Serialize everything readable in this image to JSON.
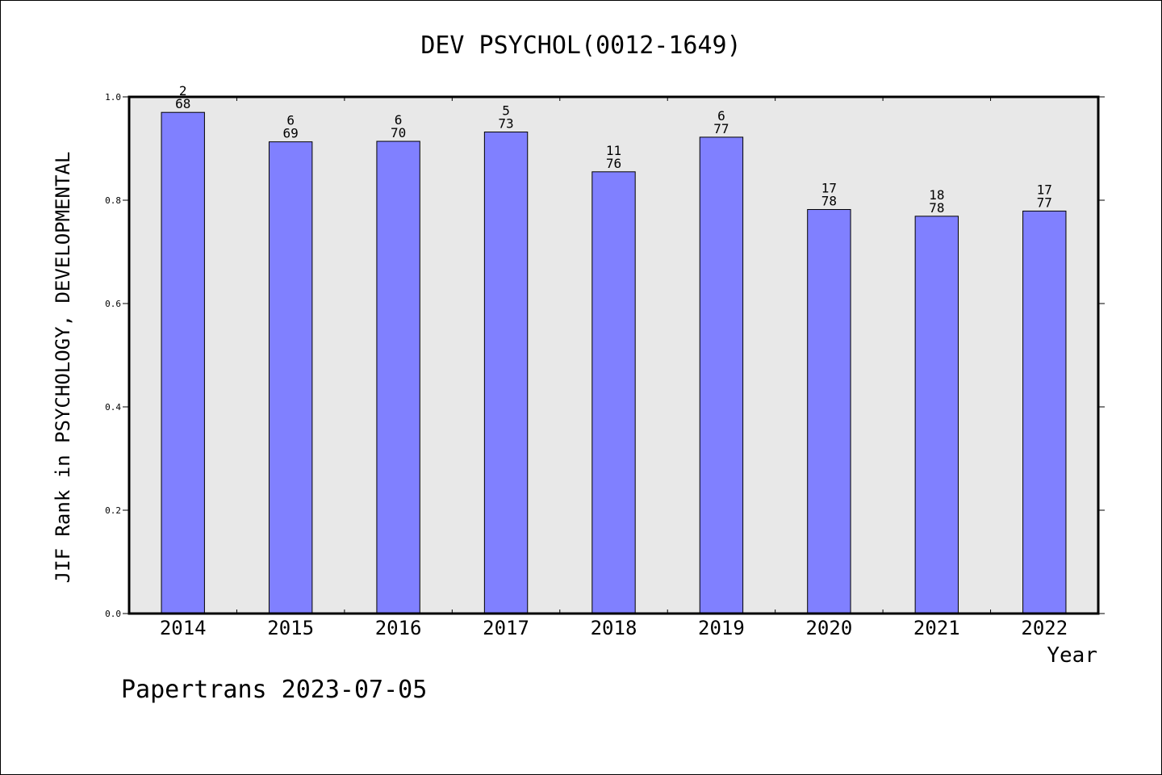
{
  "chart_data": {
    "type": "bar",
    "title": "DEV PSYCHOL(0012-1649)",
    "xlabel": "Year",
    "ylabel": "JIF Rank in PSYCHOLOGY, DEVELOPMENTAL",
    "footer": "Papertrans 2023-07-05",
    "categories": [
      "2014",
      "2015",
      "2016",
      "2017",
      "2018",
      "2019",
      "2020",
      "2021",
      "2022"
    ],
    "values": [
      0.97,
      0.913,
      0.914,
      0.932,
      0.855,
      0.922,
      0.782,
      0.769,
      0.779
    ],
    "rank_labels": [
      {
        "rank": "2",
        "total": "68"
      },
      {
        "rank": "6",
        "total": "69"
      },
      {
        "rank": "6",
        "total": "70"
      },
      {
        "rank": "5",
        "total": "73"
      },
      {
        "rank": "11",
        "total": "76"
      },
      {
        "rank": "6",
        "total": "77"
      },
      {
        "rank": "17",
        "total": "78"
      },
      {
        "rank": "18",
        "total": "78"
      },
      {
        "rank": "17",
        "total": "77"
      }
    ],
    "ylim": [
      0,
      1.0
    ],
    "yticks": [
      "0.0",
      "0.2",
      "0.4",
      "0.6",
      "0.8",
      "1.0"
    ],
    "bar_color": "#8080ff",
    "plot_background": "#e8e8e8",
    "grid": false,
    "legend": "none"
  }
}
